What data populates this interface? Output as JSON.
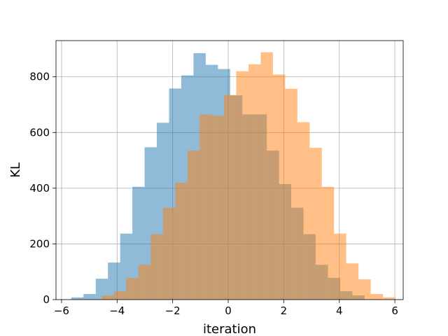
{
  "chart_data": {
    "type": "bar",
    "subtype": "overlapping-histogram",
    "xlabel": "iteration",
    "ylabel": "KL",
    "xlim": [
      -6.2,
      6.3
    ],
    "ylim": [
      0,
      930
    ],
    "grid": true,
    "x_ticks": [
      -6,
      -4,
      -2,
      0,
      2,
      4,
      6
    ],
    "x_tick_labels": [
      "−6",
      "−4",
      "−2",
      "0",
      "2",
      "4",
      "6"
    ],
    "y_ticks": [
      0,
      200,
      400,
      600,
      800
    ],
    "y_tick_labels": [
      "0",
      "200",
      "400",
      "600",
      "800"
    ],
    "bin_width": 0.44,
    "series": [
      {
        "color": "#1f77b4",
        "opacity": 0.5,
        "bin_starts": [
          -5.65,
          -5.21,
          -4.77,
          -4.33,
          -3.89,
          -3.45,
          -3.01,
          -2.57,
          -2.13,
          -1.69,
          -1.25,
          -0.81,
          -0.37,
          0.07,
          0.51,
          0.95,
          1.39,
          1.83,
          2.27,
          2.71,
          3.15,
          3.59,
          4.03,
          4.47
        ],
        "values": [
          8,
          20,
          75,
          133,
          237,
          405,
          547,
          635,
          758,
          805,
          885,
          843,
          828,
          733,
          665,
          665,
          535,
          415,
          330,
          235,
          125,
          78,
          30,
          15
        ]
      },
      {
        "color": "#ff7f0e",
        "opacity": 0.5,
        "bin_starts": [
          -4.55,
          -4.11,
          -3.67,
          -3.23,
          -2.79,
          -2.35,
          -1.91,
          -1.47,
          -1.03,
          -0.59,
          -0.15,
          0.29,
          0.73,
          1.17,
          1.61,
          2.05,
          2.49,
          2.93,
          3.37,
          3.81,
          4.25,
          4.69,
          5.13,
          5.57
        ],
        "values": [
          15,
          30,
          78,
          125,
          235,
          330,
          420,
          535,
          665,
          660,
          735,
          820,
          845,
          888,
          808,
          757,
          637,
          545,
          405,
          237,
          130,
          73,
          20,
          8
        ]
      }
    ]
  }
}
